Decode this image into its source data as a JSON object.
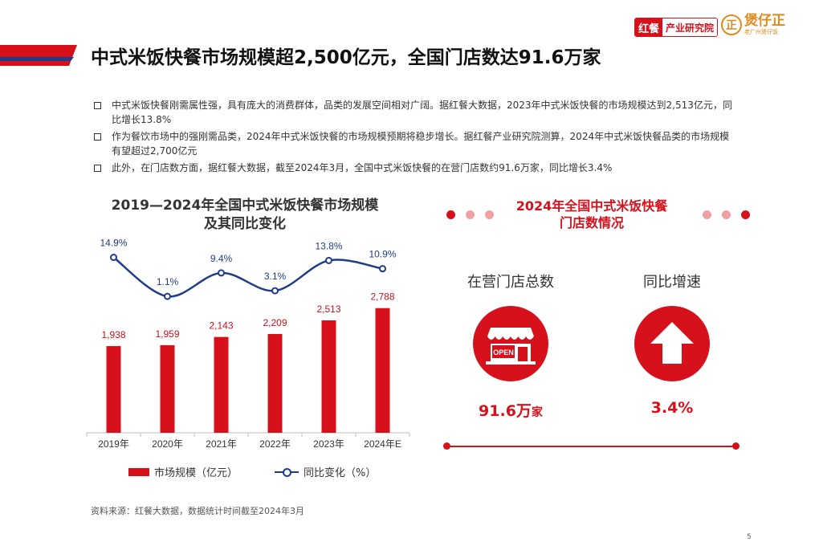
{
  "header": {
    "logo_red": "红餐",
    "logo_text": "产业研究院",
    "brand2_symbol": "正",
    "brand2_name": "煲仔正",
    "brand2_sub": "老广州煲仔饭"
  },
  "title": "中式米饭快餐市场规模超2,500亿元，全国门店数达91.6万家",
  "bullets": [
    "中式米饭快餐刚需属性强，具有庞大的消费群体，品类的发展空间相对广阔。据红餐大数据，2023年中式米饭快餐的市场规模达到2,513亿元，同比增长13.8%",
    "作为餐饮市场中的强刚需品类，2024年中式米饭快餐的市场规模预期将稳步增长。据红餐产业研究院测算，2024年中式米饭快餐品类的市场规模有望超过2,700亿元",
    "此外，在门店数方面，据红餐大数据，截至2024年3月，全国中式米饭快餐的在营门店数约91.6万家，同比增长3.4%"
  ],
  "chart_title_line1": "2019—2024年全国中式米饭快餐市场规模",
  "chart_title_line2": "及其同比变化",
  "chart_data": {
    "type": "bar",
    "title": "2019—2024年全国中式米饭快餐市场规模及其同比变化",
    "categories": [
      "2019年",
      "2020年",
      "2021年",
      "2022年",
      "2023年",
      "2024年E"
    ],
    "series": [
      {
        "name": "市场规模（亿元）",
        "type": "bar",
        "values": [
          1938,
          1959,
          2143,
          2209,
          2513,
          2788
        ],
        "labels": [
          "1,938",
          "1,959",
          "2,143",
          "2,209",
          "2,513",
          "2,788"
        ]
      },
      {
        "name": "同比变化（%）",
        "type": "line",
        "values": [
          14.9,
          1.1,
          9.4,
          3.1,
          13.8,
          10.9
        ],
        "labels": [
          "14.9%",
          "1.1%",
          "9.4%",
          "3.1%",
          "13.8%",
          "10.9%"
        ]
      }
    ],
    "colors": {
      "bar": "#d7111c",
      "line": "#1f3c88"
    }
  },
  "legend": {
    "bar": "市场规模（亿元）",
    "line": "同比变化（%）"
  },
  "source": "资料来源：红餐大数据，数据统计时间截至2024年3月",
  "right_panel": {
    "title_line1": "2024年全国中式米饭快餐",
    "title_line2": "门店数情况",
    "store_label": "在营门店总数",
    "store_value": "91.6万",
    "store_unit": "家",
    "growth_label": "同比增速",
    "growth_value": "3.4%",
    "open_sign": "OPEN"
  },
  "page_number": "5",
  "colors": {
    "accent": "#d7111c",
    "line": "#1f3c88",
    "dot_light": "#f0a0a4"
  }
}
